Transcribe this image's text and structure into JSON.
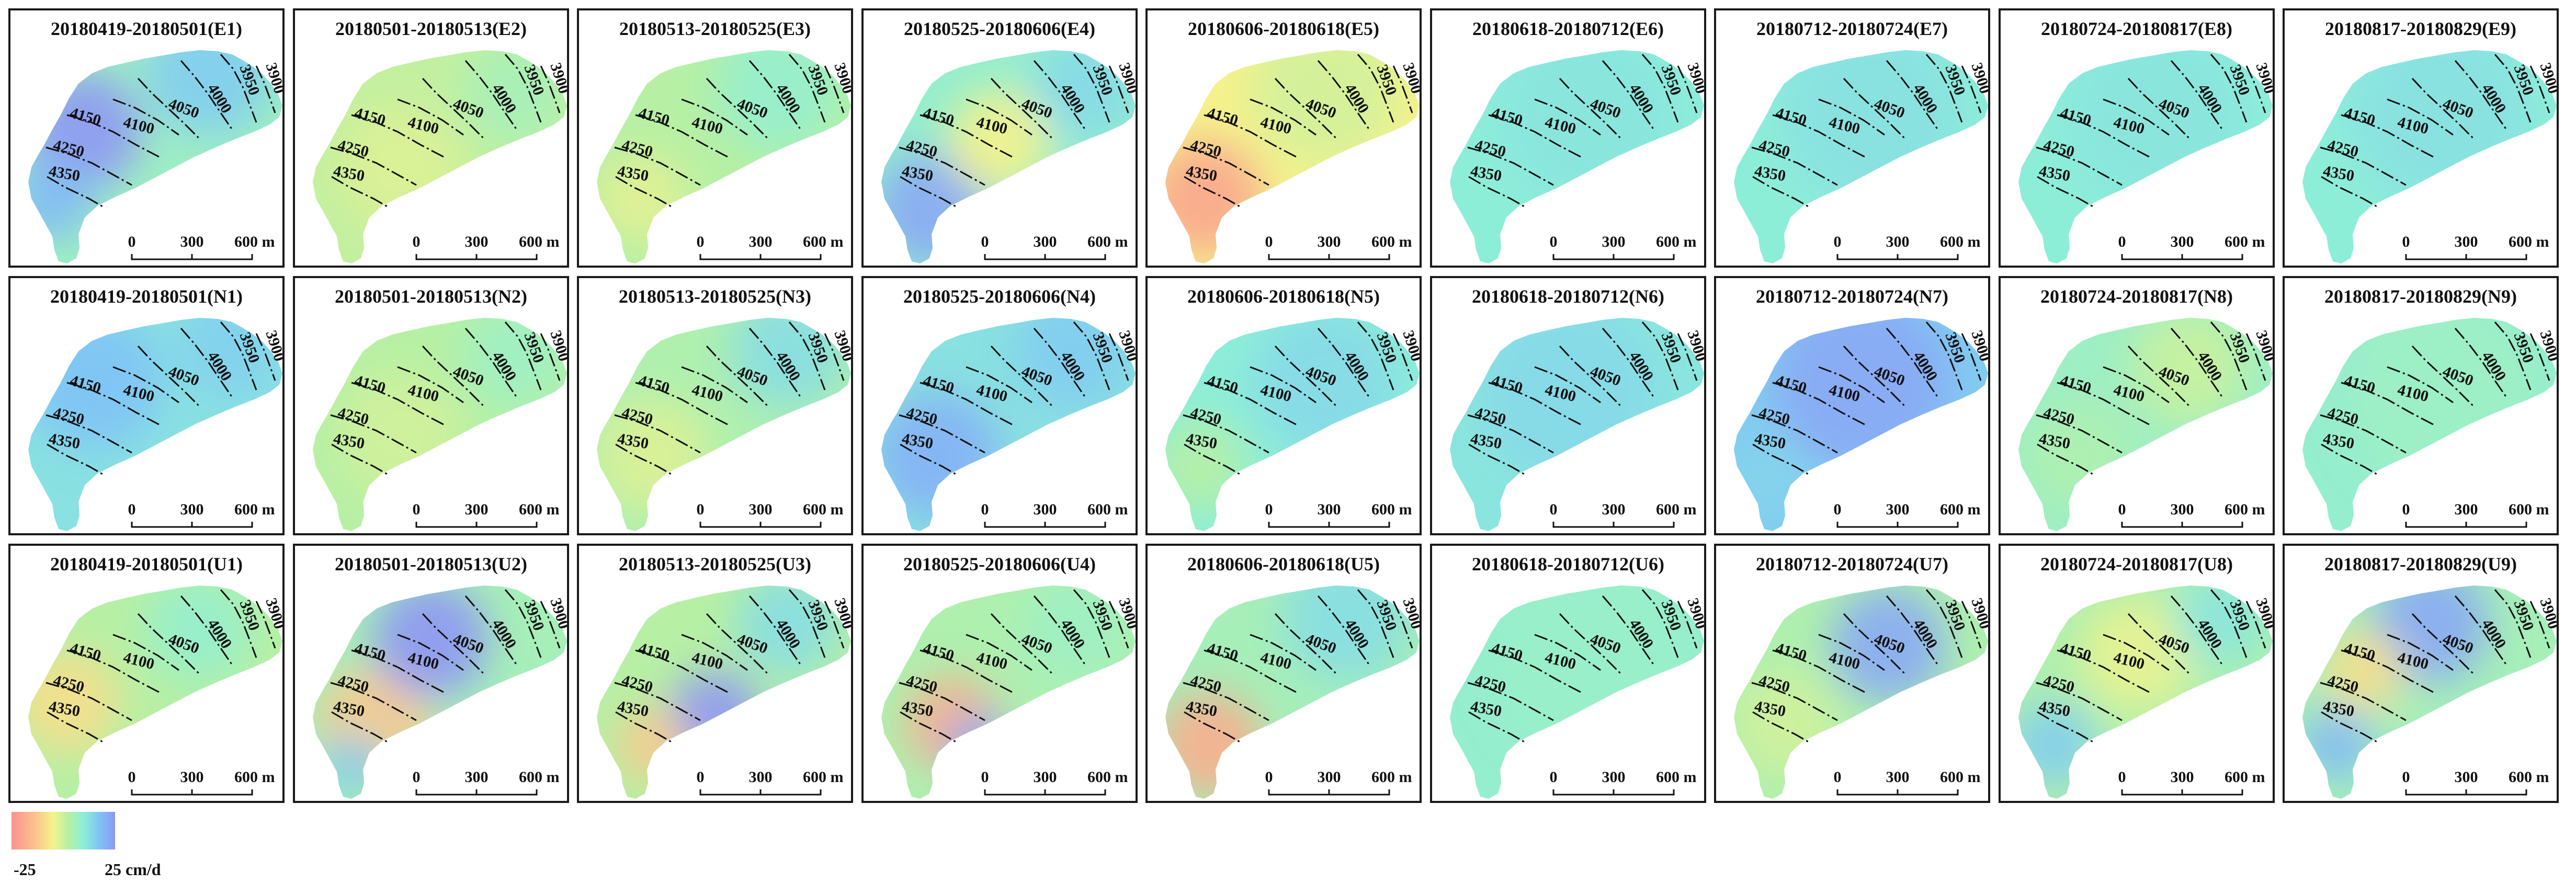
{
  "panels": [
    {
      "label": "20180419-20180501(E1)"
    },
    {
      "label": "20180501-20180513(E2)"
    },
    {
      "label": "20180513-20180525(E3)"
    },
    {
      "label": "20180525-20180606(E4)"
    },
    {
      "label": "20180606-20180618(E5)"
    },
    {
      "label": "20180618-20180712(E6)"
    },
    {
      "label": "20180712-20180724(E7)"
    },
    {
      "label": "20180724-20180817(E8)"
    },
    {
      "label": "20180817-20180829(E9)"
    },
    {
      "label": "20180419-20180501(N1)"
    },
    {
      "label": "20180501-20180513(N2)"
    },
    {
      "label": "20180513-20180525(N3)"
    },
    {
      "label": "20180525-20180606(N4)"
    },
    {
      "label": "20180606-20180618(N5)"
    },
    {
      "label": "20180618-20180712(N6)"
    },
    {
      "label": "20180712-20180724(N7)"
    },
    {
      "label": "20180724-20180817(N8)"
    },
    {
      "label": "20180817-20180829(N9)"
    },
    {
      "label": "20180419-20180501(U1)"
    },
    {
      "label": "20180501-20180513(U2)"
    },
    {
      "label": "20180513-20180525(U3)"
    },
    {
      "label": "20180525-20180606(U4)"
    },
    {
      "label": "20180606-20180618(U5)"
    },
    {
      "label": "20180618-20180712(U6)"
    },
    {
      "label": "20180712-20180724(U7)"
    },
    {
      "label": "20180724-20180817(U8)"
    },
    {
      "label": "20180817-20180829(U9)"
    }
  ],
  "contours": [
    "4350",
    "4250",
    "4150",
    "4100",
    "4050",
    "4000",
    "3950",
    "3900"
  ],
  "scalebar": {
    "ticks": [
      "0",
      "300",
      "600 m"
    ]
  },
  "legend": {
    "min_label": "-25",
    "max_label": "25  cm/d",
    "colors": [
      "#f7938f",
      "#fbc08d",
      "#f5f28c",
      "#b7f0a5",
      "#8deed8",
      "#7fc3f7",
      "#8f96f4"
    ]
  }
}
